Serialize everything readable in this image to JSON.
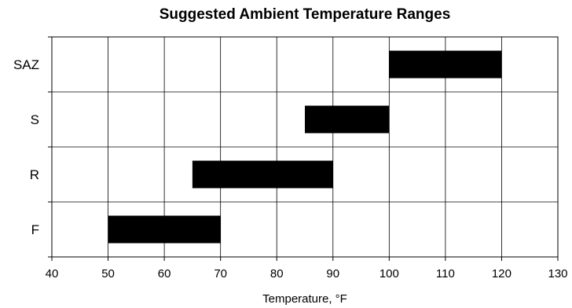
{
  "chart_data": {
    "type": "bar",
    "orientation": "horizontal-range",
    "title": "Suggested Ambient Temperature Ranges",
    "xlabel": "Temperature, °F",
    "ylabel": "",
    "xlim": [
      40,
      130
    ],
    "xticks": [
      40,
      50,
      60,
      70,
      80,
      90,
      100,
      110,
      120,
      130
    ],
    "grid": true,
    "legend": "none",
    "bar_color": "#000000",
    "categories": [
      "F",
      "R",
      "S",
      "SAZ"
    ],
    "ranges": [
      {
        "category": "F",
        "start": 50,
        "end": 70
      },
      {
        "category": "R",
        "start": 65,
        "end": 90
      },
      {
        "category": "S",
        "start": 85,
        "end": 100
      },
      {
        "category": "SAZ",
        "start": 100,
        "end": 120
      }
    ]
  }
}
